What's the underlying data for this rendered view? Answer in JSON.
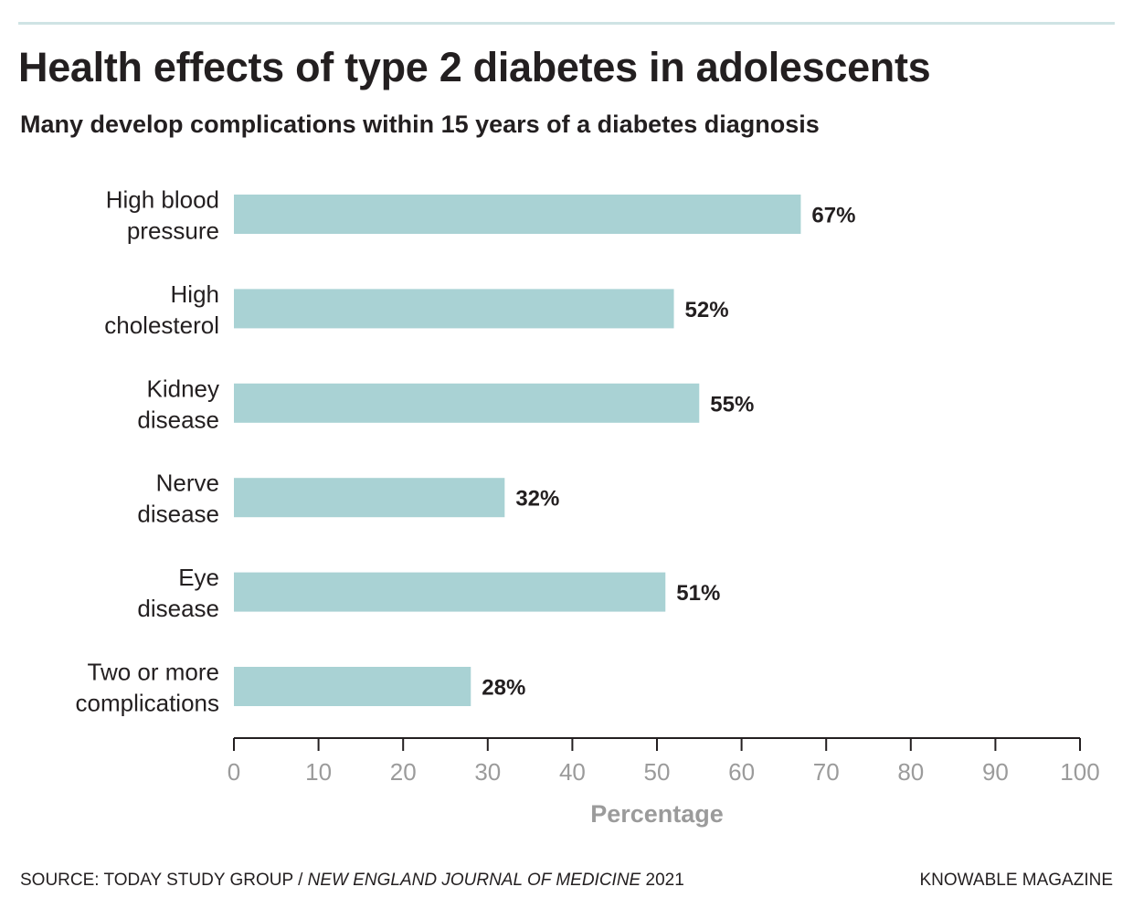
{
  "header": {
    "title": "Health effects of type 2 diabetes in adolescents",
    "subtitle": "Many develop complications within 15 years of a diabetes diagnosis"
  },
  "footer": {
    "source_prefix": "SOURCE: TODAY STUDY GROUP / ",
    "source_journal": "NEW ENGLAND JOURNAL OF MEDICINE",
    "source_year": " 2021",
    "brand": "KNOWABLE MAGAZINE"
  },
  "colors": {
    "bar": "#a9d2d4",
    "text": "#231f20",
    "axis_text": "#9b9b9b",
    "rule": "#cfe3e4"
  },
  "chart_data": {
    "type": "bar",
    "orientation": "horizontal",
    "title": "Health effects of type 2 diabetes in adolescents",
    "subtitle": "Many develop complications within 15 years of a diabetes diagnosis",
    "xlabel": "Percentage",
    "ylabel": "",
    "xlim": [
      0,
      100
    ],
    "xticks": [
      0,
      10,
      20,
      30,
      40,
      50,
      60,
      70,
      80,
      90,
      100
    ],
    "grid": false,
    "categories": [
      [
        "High blood",
        "pressure"
      ],
      [
        "High",
        "cholesterol"
      ],
      [
        "Kidney",
        "disease"
      ],
      [
        "Nerve",
        "disease"
      ],
      [
        "Eye",
        "disease"
      ],
      [
        "Two or more",
        "complications"
      ]
    ],
    "values": [
      67,
      52,
      55,
      32,
      51,
      28
    ],
    "value_labels": [
      "67%",
      "52%",
      "55%",
      "32%",
      "51%",
      "28%"
    ]
  }
}
